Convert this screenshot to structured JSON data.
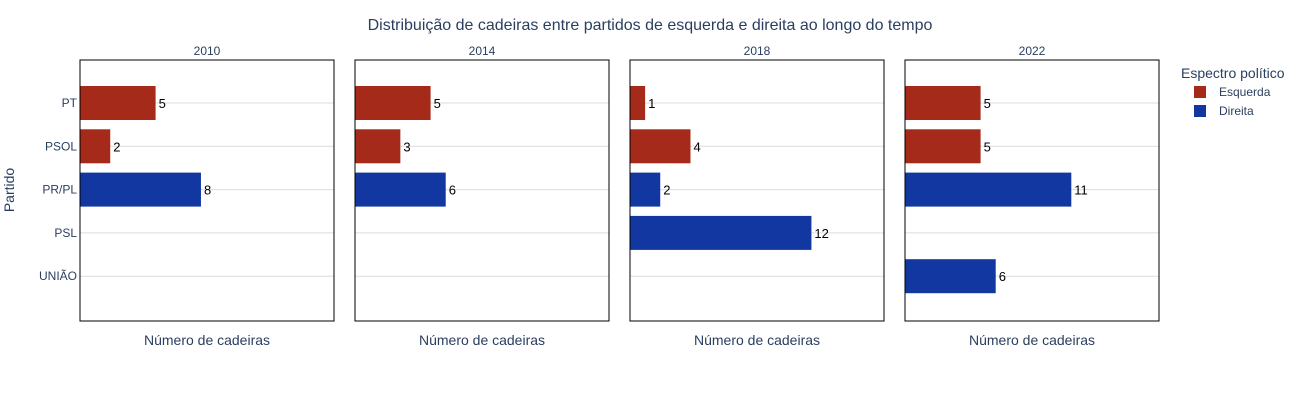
{
  "chart_data": {
    "type": "bar",
    "orientation": "horizontal",
    "title": "Distribuição de cadeiras entre partidos de esquerda e direita ao longo do tempo",
    "ylabel": "Partido",
    "xlabel": "Número de cadeiras",
    "categories": [
      "PT",
      "PSOL",
      "PR/PL",
      "PSL",
      "UNIÃO"
    ],
    "xlim": [
      0,
      16.8
    ],
    "grid": "horizontal",
    "legend": {
      "title": "Espectro político",
      "placement": "right",
      "entries": [
        {
          "name": "Esquerda",
          "color": "#a52a1a"
        },
        {
          "name": "Direita",
          "color": "#1237a0"
        }
      ]
    },
    "panels": [
      {
        "title": "2010",
        "bars": [
          {
            "category": "PT",
            "value": 5,
            "group": "Esquerda"
          },
          {
            "category": "PSOL",
            "value": 2,
            "group": "Esquerda"
          },
          {
            "category": "PR/PL",
            "value": 8,
            "group": "Direita"
          }
        ]
      },
      {
        "title": "2014",
        "bars": [
          {
            "category": "PT",
            "value": 5,
            "group": "Esquerda"
          },
          {
            "category": "PSOL",
            "value": 3,
            "group": "Esquerda"
          },
          {
            "category": "PR/PL",
            "value": 6,
            "group": "Direita"
          }
        ]
      },
      {
        "title": "2018",
        "bars": [
          {
            "category": "PT",
            "value": 1,
            "group": "Esquerda"
          },
          {
            "category": "PSOL",
            "value": 4,
            "group": "Esquerda"
          },
          {
            "category": "PR/PL",
            "value": 2,
            "group": "Direita"
          },
          {
            "category": "PSL",
            "value": 12,
            "group": "Direita"
          }
        ]
      },
      {
        "title": "2022",
        "bars": [
          {
            "category": "PT",
            "value": 5,
            "group": "Esquerda"
          },
          {
            "category": "PSOL",
            "value": 5,
            "group": "Esquerda"
          },
          {
            "category": "PR/PL",
            "value": 11,
            "group": "Direita"
          },
          {
            "category": "UNIÃO",
            "value": 6,
            "group": "Direita"
          }
        ]
      }
    ]
  }
}
